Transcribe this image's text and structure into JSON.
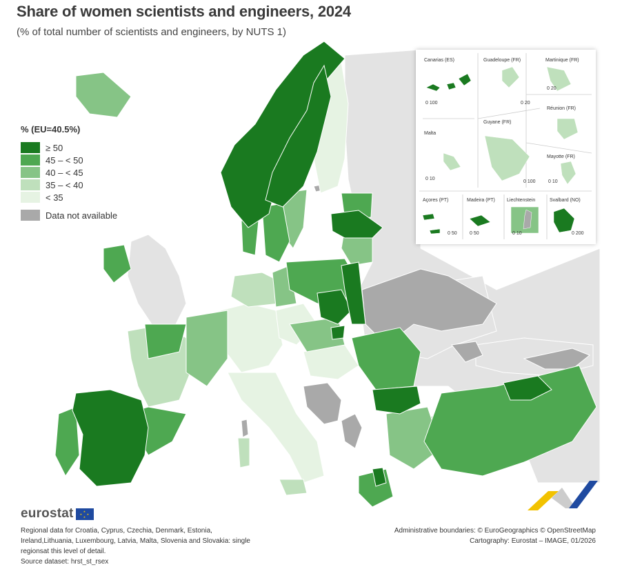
{
  "title": "Share of women scientists and engineers, 2024",
  "subtitle": "(% of total number of scientists and engineers, by NUTS 1)",
  "legend": {
    "title": "% (EU=40.5%)",
    "classes": [
      {
        "label": "≥ 50",
        "color": "#1a7a20"
      },
      {
        "label": "45 – < 50",
        "color": "#4ea851"
      },
      {
        "label": "40 – < 45",
        "color": "#86c486"
      },
      {
        "label": "35 – < 40",
        "color": "#bfe0bc"
      },
      {
        "label": "< 35",
        "color": "#e6f3e3"
      }
    ],
    "na": {
      "label": "Data not available",
      "color": "#a9a9a9"
    }
  },
  "insets": {
    "canarias": "Canarias (ES)",
    "guadeloupe": "Guadeloupe (FR)",
    "martinique": "Martinique (FR)",
    "reunion": "Réunion (FR)",
    "malta": "Malta",
    "guyane": "Guyane (FR)",
    "mayotte": "Mayotte (FR)",
    "acores": "Açores (PT)",
    "madeira": "Madeira (PT)",
    "liechtenstein": "Liechtenstein",
    "svalbard": "Svalbard (NO)",
    "scales": {
      "canarias": "0  100",
      "guadeloupe": "0  20",
      "martinique": "0  20",
      "malta": "0  10",
      "guyane": "0  100",
      "mayotte": "0 10",
      "acores": "0  50",
      "madeira": "0  50",
      "liechtenstein": "0  10",
      "svalbard": "0   200"
    }
  },
  "logo": "eurostat",
  "footnote": [
    "Regional data for Croatia, Cyprus, Czechia, Denmark, Estonia,",
    "Ireland,Lithuania, Luxembourg, Latvia, Malta, Slovenia and Slovakia: single",
    "regionsat this level of detail.",
    "Source dataset: hrst_st_rsex"
  ],
  "credits": [
    "Administrative boundaries: © EuroGeographics © OpenStreetMap",
    "Cartography: Eurostat – IMAGE, 01/2026"
  ],
  "colors": {
    "sea": "#ffffff",
    "non_eu": "#e3e3e3",
    "border": "#ffffff",
    "brand_blue": "#1f4aa0",
    "brand_yellow": "#f2c200"
  }
}
